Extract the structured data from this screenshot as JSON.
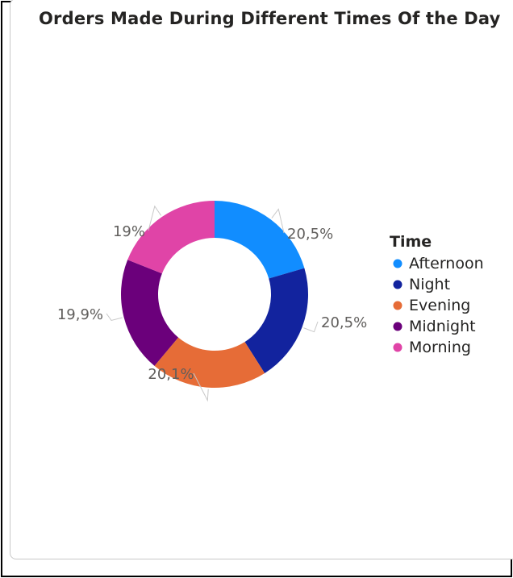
{
  "chart_data": {
    "type": "pie",
    "title": "Orders Made During Different Times Of the Day",
    "legend_title": "Time",
    "legend_position": "right",
    "donut": true,
    "slices": [
      {
        "label": "Afternoon",
        "value": 20.5,
        "data_label": "20,5%",
        "color": "#118DFF"
      },
      {
        "label": "Night",
        "value": 20.5,
        "data_label": "20,5%",
        "color": "#12239E"
      },
      {
        "label": "Evening",
        "value": 20.1,
        "data_label": "20,1%",
        "color": "#E66C37"
      },
      {
        "label": "Midnight",
        "value": 19.9,
        "data_label": "19,9%",
        "color": "#6B007B"
      },
      {
        "label": "Morning",
        "value": 19.0,
        "data_label": "19%",
        "color": "#E044A7"
      }
    ]
  }
}
